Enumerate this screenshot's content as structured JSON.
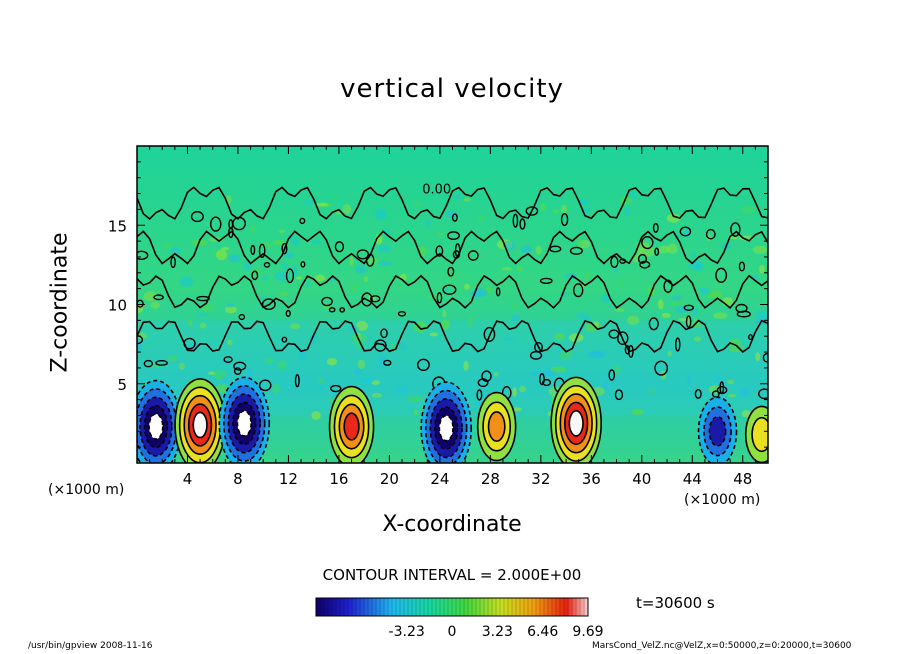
{
  "chart_data": {
    "type": "heatmap",
    "title": "vertical velocity",
    "xlabel": "X-coordinate",
    "ylabel": "Z-coordinate",
    "x_unit_left": "(×1000 m)",
    "x_unit_right": "(×1000 m)",
    "xlim": [
      0,
      50
    ],
    "ylim": [
      0,
      20
    ],
    "x_ticks": [
      "4",
      "8",
      "12",
      "16",
      "20",
      "24",
      "28",
      "32",
      "36",
      "40",
      "44",
      "48"
    ],
    "x_tick_values": [
      4,
      8,
      12,
      16,
      20,
      24,
      28,
      32,
      36,
      40,
      44,
      48
    ],
    "y_ticks": [
      "5",
      "10",
      "15"
    ],
    "y_tick_values": [
      5,
      10,
      15
    ],
    "contour_interval_text": "CONTOUR INTERVAL = 2.000E+00",
    "contour_label": "0.00",
    "time_text": "t=30600 s",
    "colorbar": {
      "range": [
        -9.69,
        9.69
      ],
      "tick_labels": [
        "-3.23",
        "0",
        "3.23",
        "6.46",
        "9.69"
      ],
      "tick_values": [
        -3.23,
        0,
        3.23,
        6.46,
        9.69
      ]
    },
    "features": [
      {
        "x": 1.5,
        "z": 2.3,
        "value": -9.69
      },
      {
        "x": 5.0,
        "z": 2.4,
        "value": 9.69
      },
      {
        "x": 8.5,
        "z": 2.5,
        "value": -9.0
      },
      {
        "x": 17.0,
        "z": 2.3,
        "value": 7.0
      },
      {
        "x": 24.5,
        "z": 2.2,
        "value": -9.5
      },
      {
        "x": 28.5,
        "z": 2.3,
        "value": 6.5
      },
      {
        "x": 34.8,
        "z": 2.5,
        "value": 9.0
      },
      {
        "x": 46.0,
        "z": 2.0,
        "value": -5.0
      },
      {
        "x": 49.5,
        "z": 1.8,
        "value": 4.0
      }
    ]
  },
  "colors": {
    "background_field": "#2fd77a",
    "negative_max": "#1a1aa8",
    "positive_max": "#e8201a"
  },
  "footer": {
    "left": "/usr/bin/gpview   2008-11-16",
    "right": "MarsCond_VelZ.nc@VelZ,x=0:50000,z=0:20000,t=30600"
  }
}
